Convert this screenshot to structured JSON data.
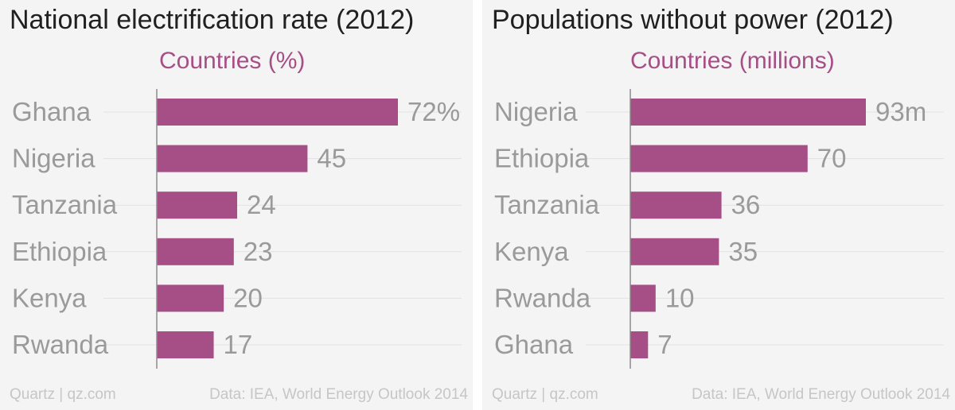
{
  "colors": {
    "bar": "#a64f86",
    "grid": "#e2e2e2",
    "axis": "#8c8c8c",
    "label": "#9a9a9a",
    "title": "#202020",
    "footer": "#c6c6c6"
  },
  "chart_data": [
    {
      "type": "bar",
      "orientation": "horizontal",
      "title": "National electrification rate (2012)",
      "subtitle": "Countries (%)",
      "categories": [
        "Ghana",
        "Nigeria",
        "Tanzania",
        "Ethiopia",
        "Kenya",
        "Rwanda"
      ],
      "values": [
        72,
        45,
        24,
        23,
        20,
        17
      ],
      "value_labels": [
        "72%",
        "45",
        "24",
        "23",
        "20",
        "17"
      ],
      "xlim": [
        0,
        72
      ],
      "grid": true,
      "source": "Quartz | qz.com",
      "data_credit": "Data: IEA, World Energy Outlook 2014"
    },
    {
      "type": "bar",
      "orientation": "horizontal",
      "title": "Populations without power (2012)",
      "subtitle": "Countries (millions)",
      "categories": [
        "Nigeria",
        "Ethiopia",
        "Tanzania",
        "Kenya",
        "Rwanda",
        "Ghana"
      ],
      "values": [
        93,
        70,
        36,
        35,
        10,
        7
      ],
      "value_labels": [
        "93m",
        "70",
        "36",
        "35",
        "10",
        "7"
      ],
      "xlim": [
        0,
        93
      ],
      "grid": true,
      "source": "Quartz | qz.com",
      "data_credit": "Data: IEA, World Energy Outlook 2014"
    }
  ]
}
